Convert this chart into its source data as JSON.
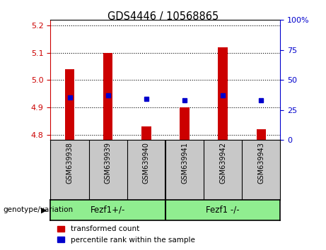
{
  "title": "GDS4446 / 10568865",
  "samples": [
    "GSM639938",
    "GSM639939",
    "GSM639940",
    "GSM639941",
    "GSM639942",
    "GSM639943"
  ],
  "red_values": [
    5.04,
    5.1,
    4.83,
    4.9,
    5.12,
    4.82
  ],
  "blue_values": [
    4.935,
    4.945,
    4.93,
    4.925,
    4.945,
    4.925
  ],
  "ylim": [
    4.78,
    5.22
  ],
  "yticks": [
    4.8,
    4.9,
    5.0,
    5.1,
    5.2
  ],
  "right_yticks": [
    0,
    25,
    50,
    75,
    100
  ],
  "group1_label": "Fezf1+/-",
  "group2_label": "Fezf1 -/-",
  "group_color": "#90EE90",
  "genotype_label": "genotype/variation",
  "legend_red": "transformed count",
  "legend_blue": "percentile rank within the sample",
  "red_color": "#CC0000",
  "blue_color": "#0000CC",
  "bar_bottom": 4.78,
  "title_color": "#000000",
  "left_axis_color": "#CC0000",
  "right_axis_color": "#0000CC",
  "bar_width": 0.25,
  "gray_color": "#C8C8C8"
}
